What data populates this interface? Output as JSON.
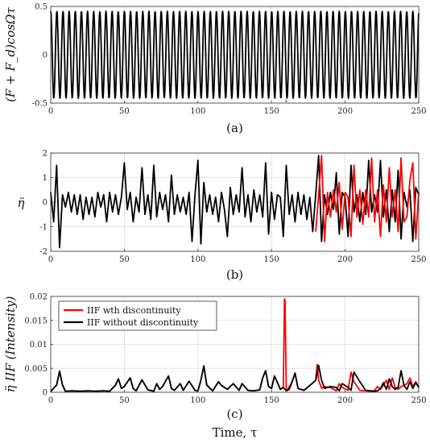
{
  "chart_data": [
    {
      "type": "line",
      "panel": "a",
      "caption": "(a)",
      "ylabel": "(F + F_d)cosΩτ",
      "xlim": [
        0,
        250
      ],
      "ylim": [
        -0.5,
        0.5
      ],
      "xticks": [
        "0",
        "50",
        "100",
        "150",
        "200",
        "250"
      ],
      "yticks": [
        "-0.5",
        "0",
        "0.5"
      ],
      "grid": true,
      "signal": {
        "amplitude": 0.45,
        "period": 4.17,
        "description_free": true
      },
      "series": [
        {
          "color": "#000000",
          "x": [
            0,
            250
          ],
          "y": [
            -0.45,
            0.45
          ]
        },
        {
          "color": "#ff0000",
          "x": [
            159.5,
            160.5
          ],
          "y": [
            -0.48,
            -0.48
          ]
        }
      ]
    },
    {
      "type": "line",
      "panel": "b",
      "caption": "(b)",
      "ylabel": "η̈",
      "xlim": [
        0,
        250
      ],
      "ylim": [
        -2,
        2
      ],
      "xticks": [
        "0",
        "50",
        "100",
        "150",
        "200",
        "250"
      ],
      "yticks": [
        "-2",
        "-1",
        "0",
        "1",
        "2"
      ],
      "grid": true,
      "series": [
        {
          "color": "#000000",
          "x": [
            0,
            2,
            4,
            6,
            8,
            10,
            12,
            14,
            16,
            18,
            20,
            22,
            24,
            26,
            28,
            30,
            32,
            34,
            36,
            38,
            40,
            42,
            44,
            46,
            48,
            50,
            52,
            54,
            56,
            58,
            60,
            62,
            64,
            66,
            68,
            70,
            72,
            74,
            76,
            78,
            80,
            82,
            84,
            86,
            88,
            90,
            92,
            94,
            96,
            98,
            100,
            102,
            104,
            106,
            108,
            110,
            112,
            114,
            116,
            118,
            120,
            122,
            124,
            126,
            128,
            130,
            132,
            134,
            136,
            138,
            140,
            142,
            144,
            146,
            148,
            150,
            152,
            154,
            156,
            158,
            160,
            162,
            164,
            166,
            168,
            170,
            172,
            174,
            176,
            178,
            180,
            182,
            184,
            186,
            188,
            190,
            192,
            194,
            196,
            198,
            200,
            202,
            204,
            206,
            208,
            210,
            212,
            214,
            216,
            218,
            220,
            222,
            224,
            226,
            228,
            230,
            232,
            234,
            236,
            238,
            240,
            242,
            244,
            246,
            248,
            250
          ],
          "y": [
            0.4,
            -0.8,
            1.5,
            -1.85,
            0.3,
            -0.2,
            0.4,
            -0.4,
            0.3,
            -0.5,
            0.3,
            -0.7,
            0.2,
            -0.5,
            0.2,
            -0.6,
            0.4,
            -0.2,
            0.3,
            -0.8,
            0.4,
            -0.4,
            0.3,
            -0.5,
            0.2,
            1.6,
            -0.3,
            0.4,
            -0.8,
            0.2,
            -0.4,
            1.4,
            -0.5,
            0.3,
            -0.7,
            1.5,
            -0.6,
            0.4,
            -0.3,
            0.3,
            -0.8,
            1.1,
            -0.5,
            0.3,
            -0.4,
            0.2,
            -0.5,
            0.4,
            -1.6,
            0.3,
            1.7,
            -1.7,
            0.8,
            -0.4,
            0.3,
            -0.5,
            0.2,
            -0.8,
            0.4,
            -0.3,
            -1.4,
            0.6,
            -0.5,
            0.3,
            -0.4,
            1.4,
            -0.6,
            0.3,
            -0.8,
            0.5,
            -0.4,
            0.3,
            -0.6,
            1.6,
            -1.3,
            0.4,
            -0.7,
            0.3,
            0.2,
            -1.4,
            1.5,
            -0.5,
            0.3,
            -0.8,
            0.4,
            -0.5,
            0.3,
            -0.7,
            0.2,
            -1.2,
            0.3,
            1.9,
            -1.6,
            0.3,
            -0.5,
            0.4,
            -0.3,
            1.2,
            -1.3,
            0.4,
            0.2,
            -1.4,
            1.5,
            -0.4,
            0.3,
            -0.8,
            0.4,
            -0.5,
            1.7,
            -0.4,
            0.3,
            -0.4,
            1.7,
            -0.6,
            0.5,
            -1.2,
            0.5,
            -0.8,
            1.3,
            -1.5,
            0.4,
            -0.2,
            0.5,
            -1.6,
            0.6,
            0.3
          ],
          "name": ""
        },
        {
          "color": "#ff0000",
          "x": [
            180,
            182,
            184,
            186,
            188,
            190,
            192,
            194,
            196,
            198,
            200,
            202,
            204,
            206,
            208,
            210,
            212,
            214,
            216,
            218,
            220,
            222,
            224,
            226,
            228,
            230,
            232,
            234,
            236,
            238,
            240,
            242,
            244,
            246,
            248,
            250
          ],
          "y": [
            -1.2,
            0.3,
            1.9,
            -1.6,
            0.4,
            -0.6,
            0.5,
            -0.4,
            0.8,
            -1.1,
            0.4,
            0.2,
            -1.4,
            1.5,
            -0.6,
            0.5,
            -0.9,
            0.5,
            -0.6,
            1.8,
            -0.8,
            0.5,
            -1.4,
            0.7,
            -0.8,
            1.4,
            -0.6,
            0.5,
            -1.2,
            1.8,
            -0.8,
            -0.6,
            0.9,
            1.6,
            -1.5,
            0.4
          ],
          "name": ""
        }
      ]
    },
    {
      "type": "line",
      "panel": "c",
      "caption": "(c)",
      "ylabel": "η̈ IIF (Intensity)",
      "xlabel": "Time, τ",
      "xlim": [
        0,
        250
      ],
      "ylim": [
        0,
        0.02
      ],
      "xticks": [
        "0",
        "50",
        "100",
        "150",
        "200",
        "250"
      ],
      "yticks": [
        "0",
        "0.005",
        "0.01",
        "0.015",
        "0.02"
      ],
      "grid": true,
      "legend_position": "top-left",
      "series": [
        {
          "name": "IIF wth discontinuity",
          "color": "#ff0000",
          "x": [
            0,
            4,
            6,
            8,
            10,
            14,
            20,
            26,
            30,
            36,
            40,
            44,
            46,
            48,
            50,
            54,
            56,
            58,
            62,
            66,
            70,
            72,
            74,
            76,
            80,
            82,
            84,
            88,
            90,
            94,
            98,
            100,
            102,
            104,
            106,
            110,
            114,
            116,
            120,
            124,
            128,
            130,
            134,
            138,
            142,
            144,
            146,
            148,
            150,
            152,
            156,
            158,
            158.8,
            159.2,
            160,
            161,
            164,
            166,
            168,
            172,
            176,
            180,
            181,
            182,
            184,
            186,
            190,
            194,
            196,
            198,
            202,
            204,
            206,
            210,
            214,
            218,
            220,
            222,
            224,
            226,
            228,
            230,
            232,
            234,
            236,
            238,
            240,
            242,
            244,
            246,
            248,
            250
          ],
          "y": [
            0.0002,
            0.0015,
            0.0044,
            0.0015,
            0.0002,
            0.0003,
            0.0002,
            0.0003,
            0.0002,
            0.0003,
            0.0002,
            0.0015,
            0.0028,
            0.0008,
            0.0012,
            0.003,
            0.0008,
            0.0003,
            0.0026,
            0.0005,
            0.0002,
            0.0018,
            0.0006,
            0.0012,
            0.0034,
            0.0008,
            0.0004,
            0.0018,
            0.0004,
            0.0023,
            0.0004,
            0.0003,
            0.0025,
            0.0055,
            0.0015,
            0.0003,
            0.0022,
            0.0014,
            0.0006,
            0.0018,
            0.0004,
            0.0018,
            0.0004,
            0.0003,
            0.0005,
            0.003,
            0.0045,
            0.0012,
            0.0008,
            0.0034,
            0.0006,
            0.001,
            0.0195,
            0.019,
            0.0003,
            0.0006,
            0.0022,
            0.004,
            0.0008,
            0.0004,
            0.0014,
            0.0025,
            0.0058,
            0.0025,
            0.0008,
            0.0012,
            0.001,
            0.0003,
            0.0018,
            0.001,
            0.0004,
            0.0042,
            0.0022,
            0.0004,
            0.0003,
            0.0002,
            0.0004,
            0.0012,
            0.0006,
            0.0015,
            0.0025,
            0.0006,
            0.003,
            0.001,
            0.0006,
            0.0012,
            0.0014,
            0.0018,
            0.003,
            0.0012,
            0.0022,
            0.001
          ]
        },
        {
          "name": "IIF without discontinuity",
          "color": "#000000",
          "x": [
            0,
            4,
            6,
            8,
            10,
            14,
            20,
            26,
            30,
            36,
            40,
            44,
            46,
            48,
            50,
            54,
            56,
            58,
            62,
            66,
            70,
            72,
            74,
            76,
            80,
            82,
            84,
            88,
            90,
            94,
            98,
            100,
            102,
            104,
            106,
            110,
            114,
            116,
            120,
            124,
            128,
            130,
            134,
            138,
            142,
            144,
            146,
            148,
            150,
            152,
            156,
            158,
            160,
            162,
            164,
            166,
            168,
            172,
            176,
            180,
            182,
            184,
            186,
            190,
            194,
            196,
            198,
            202,
            204,
            206,
            210,
            214,
            218,
            220,
            222,
            224,
            226,
            228,
            230,
            232,
            234,
            236,
            238,
            240,
            242,
            244,
            246,
            248,
            250
          ],
          "y": [
            0.0002,
            0.0015,
            0.0044,
            0.0015,
            0.0002,
            0.0003,
            0.0002,
            0.0003,
            0.0002,
            0.0003,
            0.0002,
            0.0015,
            0.0028,
            0.0008,
            0.0012,
            0.003,
            0.0008,
            0.0003,
            0.0026,
            0.0005,
            0.0002,
            0.0018,
            0.0006,
            0.0012,
            0.0034,
            0.0008,
            0.0004,
            0.0018,
            0.0004,
            0.0023,
            0.0004,
            0.0003,
            0.0025,
            0.0055,
            0.0015,
            0.0003,
            0.0022,
            0.0014,
            0.0006,
            0.0018,
            0.0004,
            0.0018,
            0.0004,
            0.0003,
            0.0005,
            0.003,
            0.0045,
            0.0012,
            0.0008,
            0.0034,
            0.0006,
            0.001,
            0.0003,
            0.0006,
            0.0022,
            0.004,
            0.0008,
            0.0004,
            0.0014,
            0.0025,
            0.0056,
            0.0025,
            0.0008,
            0.0012,
            0.001,
            0.0003,
            0.0018,
            0.001,
            0.0004,
            0.0042,
            0.0022,
            0.0004,
            0.0003,
            0.0002,
            0.0003,
            0.0008,
            0.002,
            0.0006,
            0.0028,
            0.0012,
            0.0006,
            0.001,
            0.0045,
            0.0014,
            0.0006,
            0.0022,
            0.0008,
            0.002,
            0.001
          ]
        }
      ]
    }
  ]
}
